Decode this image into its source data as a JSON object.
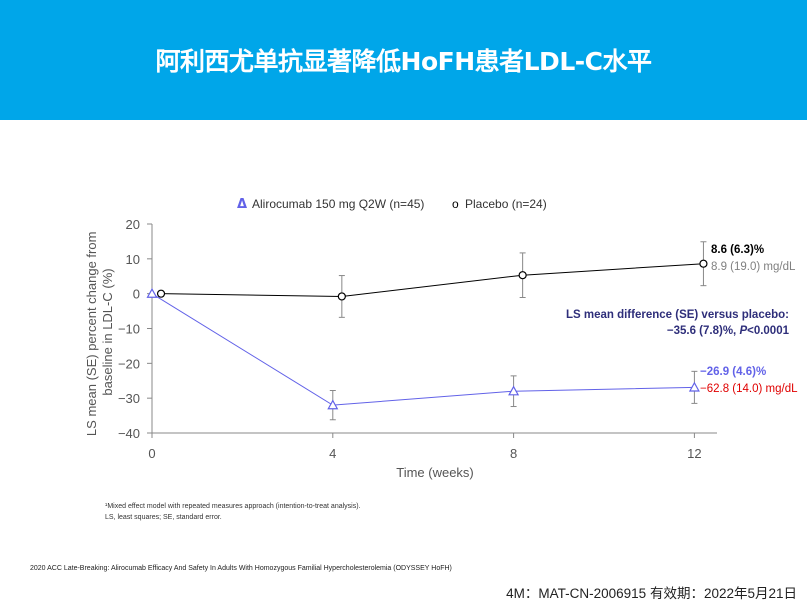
{
  "header": {
    "title": "阿利西尤单抗显著降低HoFH患者LDL-C水平",
    "bg_color": "#00a6e9"
  },
  "chart_data": {
    "type": "line",
    "xlabel": "Time (weeks)",
    "ylabel": "LS mean (SE) percent change from baseline in LDL-C (%)",
    "xlim": [
      0,
      12.5
    ],
    "ylim": [
      -40,
      20
    ],
    "x_ticks": [
      "0",
      "4",
      "8",
      "12"
    ],
    "y_ticks": [
      "20",
      "10",
      "0",
      "−10",
      "−20",
      "−30",
      "−40"
    ],
    "grid": false,
    "legend_position": "top",
    "series": [
      {
        "name": "Alirocumab 150 mg Q2W (n=45)",
        "legend_marker": "Δ",
        "marker": "triangle",
        "color": "#6262e8",
        "x": [
          0,
          4,
          8,
          12
        ],
        "y": [
          0,
          -32,
          -28,
          -26.9
        ],
        "se": [
          0,
          4.2,
          4.4,
          4.6
        ]
      },
      {
        "name": "Placebo (n=24)",
        "legend_marker": "o",
        "marker": "circle",
        "color": "#000000",
        "x": [
          0.2,
          4.2,
          8.2,
          12.2
        ],
        "y": [
          0,
          -0.8,
          5.3,
          8.6
        ],
        "se": [
          0,
          6,
          6.4,
          6.3
        ]
      }
    ],
    "annotations": {
      "placebo_pct": "8.6 (6.3)%",
      "placebo_abs": "8.9 (19.0) mg/dL",
      "diff_line1": "LS mean difference (SE) versus placebo:",
      "diff_line2_a": "−35.6 (7.8)%, ",
      "diff_line2_p": "P",
      "diff_line2_b": "<0.0001",
      "aliro_pct": "−26.9 (4.6)%",
      "aliro_abs": "−62.8 (14.0) mg/dL"
    },
    "colors": {
      "placebo_abs": "#808080",
      "diff_text": "#2e2e7a",
      "aliro_pct": "#6262e8",
      "aliro_abs": "#e00000"
    }
  },
  "footnotes": {
    "line1": "¹Mixed effect model with repeated measures approach (intention-to-treat analysis).",
    "line2": "LS, least squares; SE, standard error."
  },
  "reference": "2020 ACC Late-Breaking: Alirocumab Efficacy And Safety In Adults With Homozygous Familial Hypercholesterolemia (ODYSSEY HoFH)",
  "footer": "4M：MAT-CN-2006915  有效期：2022年5月21日"
}
